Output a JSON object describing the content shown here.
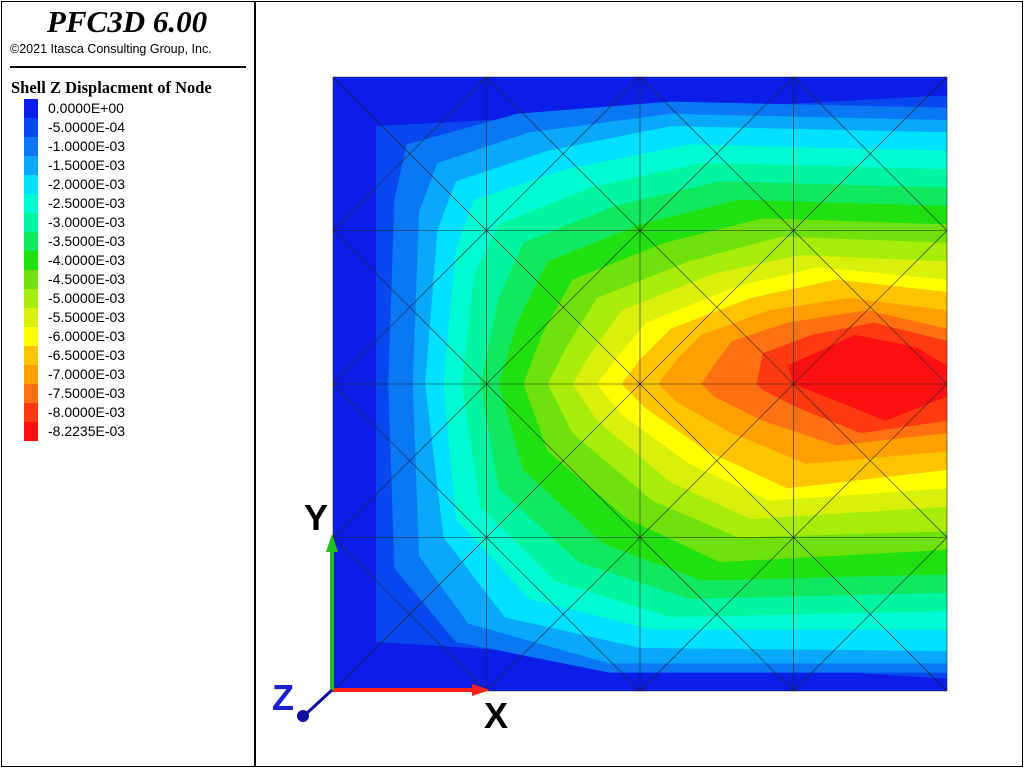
{
  "app": {
    "title": "PFC3D 6.00",
    "copyright": "©2021 Itasca Consulting Group, Inc."
  },
  "legend": {
    "title": "Shell Z Displacment of Node",
    "items": [
      {
        "label": "0.0000E+00",
        "color": "#0b1ee8"
      },
      {
        "label": "-5.0000E-04",
        "color": "#0a48ef"
      },
      {
        "label": "-1.0000E-03",
        "color": "#0a78f5"
      },
      {
        "label": "-1.5000E-03",
        "color": "#08a8fa"
      },
      {
        "label": "-2.0000E-03",
        "color": "#00e0ff"
      },
      {
        "label": "-2.5000E-03",
        "color": "#00fad2"
      },
      {
        "label": "-3.0000E-03",
        "color": "#00f5a0"
      },
      {
        "label": "-3.5000E-03",
        "color": "#10e860"
      },
      {
        "label": "-4.0000E-03",
        "color": "#20e010"
      },
      {
        "label": "-4.5000E-03",
        "color": "#6ee20a"
      },
      {
        "label": "-5.0000E-03",
        "color": "#a8ec0a"
      },
      {
        "label": "-5.5000E-03",
        "color": "#d8f00a"
      },
      {
        "label": "-6.0000E-03",
        "color": "#ffff00"
      },
      {
        "label": "-6.5000E-03",
        "color": "#ffc400"
      },
      {
        "label": "-7.0000E-03",
        "color": "#ffa000"
      },
      {
        "label": "-7.5000E-03",
        "color": "#ff7010"
      },
      {
        "label": "-8.0000E-03",
        "color": "#ff3a10"
      },
      {
        "label": "-8.2235E-03",
        "color": "#ff1010"
      }
    ]
  },
  "axes": {
    "x_label": "X",
    "y_label": "Y",
    "z_label": "Z",
    "x_color": "#ff2020",
    "y_color": "#20c020",
    "z_color": "#1010a0",
    "label_x_color": "#000000",
    "label_y_color": "#000000",
    "label_z_color": "#1a20d0"
  }
}
